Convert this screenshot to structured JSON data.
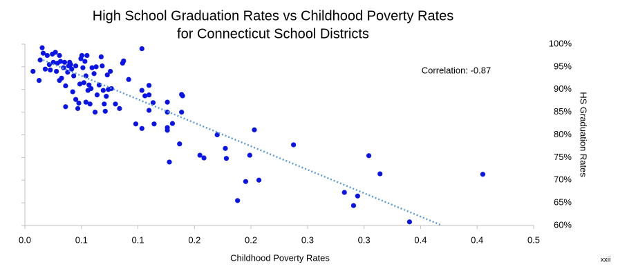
{
  "chart_data": {
    "type": "scatter",
    "title": [
      "High School Graduation Rates vs Childhood Poverty Rates",
      "for Connecticut School Districts"
    ],
    "xlabel": "Childhood Poverty Rates",
    "ylabel": "HS Graduation Rates",
    "annotation": "Correlation: -0.87",
    "footer": "xxii",
    "color": "#0a14e6",
    "trendline_color": "#5b9bd5",
    "xlim": [
      0,
      0.5
    ],
    "ylim": [
      60,
      100
    ],
    "xticks": [
      {
        "value": 0,
        "label": "0.0"
      },
      {
        "value": 0.0556,
        "label": "0.1"
      },
      {
        "value": 0.1111,
        "label": "0.1"
      },
      {
        "value": 0.1667,
        "label": "0.2"
      },
      {
        "value": 0.2222,
        "label": "0.2"
      },
      {
        "value": 0.2778,
        "label": "0.3"
      },
      {
        "value": 0.3333,
        "label": "0.3"
      },
      {
        "value": 0.3889,
        "label": "0.4"
      },
      {
        "value": 0.4444,
        "label": "0.4"
      },
      {
        "value": 0.5,
        "label": "0.5"
      }
    ],
    "yticks": [
      {
        "value": 60,
        "label": "60%"
      },
      {
        "value": 65,
        "label": "65%"
      },
      {
        "value": 70,
        "label": "70%"
      },
      {
        "value": 75,
        "label": "75%"
      },
      {
        "value": 80,
        "label": "80%"
      },
      {
        "value": 85,
        "label": "85%"
      },
      {
        "value": 90,
        "label": "90%"
      },
      {
        "value": 95,
        "label": "95%"
      },
      {
        "value": 100,
        "label": "100%"
      }
    ],
    "x": [
      0.008,
      0.014,
      0.015,
      0.017,
      0.018,
      0.02,
      0.022,
      0.024,
      0.025,
      0.027,
      0.028,
      0.03,
      0.031,
      0.032,
      0.034,
      0.034,
      0.035,
      0.036,
      0.038,
      0.039,
      0.04,
      0.04,
      0.042,
      0.043,
      0.044,
      0.045,
      0.046,
      0.047,
      0.048,
      0.05,
      0.05,
      0.052,
      0.053,
      0.054,
      0.055,
      0.056,
      0.057,
      0.058,
      0.059,
      0.06,
      0.06,
      0.061,
      0.062,
      0.063,
      0.064,
      0.065,
      0.066,
      0.068,
      0.069,
      0.07,
      0.071,
      0.073,
      0.075,
      0.076,
      0.077,
      0.078,
      0.079,
      0.08,
      0.081,
      0.082,
      0.084,
      0.085,
      0.089,
      0.093,
      0.097,
      0.096,
      0.102,
      0.115,
      0.109,
      0.115,
      0.115,
      0.118,
      0.122,
      0.122,
      0.126,
      0.122,
      0.127,
      0.14,
      0.14,
      0.14,
      0.14,
      0.142,
      0.145,
      0.152,
      0.154,
      0.155,
      0.154,
      0.172,
      0.176,
      0.189,
      0.197,
      0.198,
      0.209,
      0.217,
      0.221,
      0.2255,
      0.23,
      0.264,
      0.314,
      0.323,
      0.327,
      0.338,
      0.349,
      0.378,
      0.45
    ],
    "values": [
      94,
      92,
      96.5,
      99.2,
      98,
      94.5,
      97.5,
      95.5,
      94.3,
      97.8,
      96,
      98.2,
      94,
      95.8,
      92,
      97.5,
      96.2,
      92.5,
      94.8,
      96,
      90.8,
      86.2,
      93.8,
      95.2,
      96,
      95.5,
      94.5,
      89.5,
      93,
      87.8,
      95.2,
      85.8,
      87,
      91.2,
      96.8,
      97.5,
      94.8,
      91.5,
      96.2,
      87.2,
      93,
      97.5,
      89.8,
      91,
      86.8,
      90.2,
      94.8,
      93.5,
      85,
      95,
      88.8,
      91,
      97.2,
      95.2,
      89.8,
      86.8,
      85.2,
      88.5,
      93.2,
      90,
      94,
      90.2,
      86.8,
      85.8,
      96.3,
      95.8,
      92.2,
      99,
      82.4,
      81.4,
      89.8,
      88.6,
      90.9,
      88.8,
      87.1,
      85.4,
      82.4,
      87.2,
      85,
      81.6,
      81,
      74,
      82.5,
      78,
      88.9,
      88.6,
      85,
      75.5,
      74.9,
      80,
      77,
      74.8,
      65.5,
      69.7,
      75.5,
      81.1,
      70,
      77.8,
      67.3,
      64.4,
      66.5,
      75.4,
      71.4,
      60.8,
      71.3
    ],
    "trendline": {
      "x": [
        0.018,
        0.41
      ],
      "y": [
        96.5,
        60
      ]
    }
  }
}
